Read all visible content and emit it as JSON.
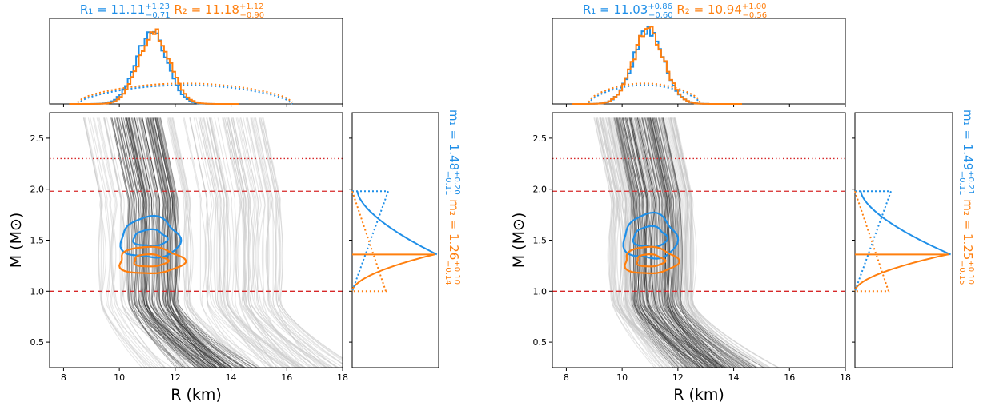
{
  "colors": {
    "r1": "#1f8fe8",
    "r2": "#ff7f0e",
    "constraint": "#d62728",
    "eos_dark": "#222222",
    "eos_light": "#c8c8c8"
  },
  "chart_data": [
    {
      "type": "line",
      "panel": "left",
      "xlabel": "R (km)",
      "ylabel": "M (M⊙)",
      "xlim": [
        7.5,
        18
      ],
      "ylim": [
        0.25,
        2.75
      ],
      "x_ticks": [
        8,
        10,
        12,
        14,
        16,
        18
      ],
      "y_ticks": [
        0.5,
        1.0,
        1.5,
        2.0,
        2.5
      ],
      "reference_lines": [
        {
          "y": 1.0,
          "style": "dashed",
          "color": "red"
        },
        {
          "y": 1.98,
          "style": "dashed",
          "color": "red"
        },
        {
          "y": 2.3,
          "style": "dotted",
          "color": "red"
        }
      ],
      "top_title": {
        "r1_label": "R₁ = 11.11",
        "r1_up": "+1.23",
        "r1_down": "−0.71",
        "r2_label": "R₂ = 11.18",
        "r2_up": "+1.12",
        "r2_down": "−0.90"
      },
      "side_title": {
        "m1_label": "m₁ = 1.48",
        "m1_up": "+0.20",
        "m1_down": "−0.11",
        "m2_label": "m₂ = 1.26",
        "m2_up": "+0.10",
        "m2_down": "−0.14"
      },
      "contours": [
        {
          "series": "m1/R1",
          "center": [
            11.1,
            1.52
          ],
          "rx": [
            1.05,
            0.6
          ],
          "ry": [
            0.2,
            0.08
          ]
        },
        {
          "series": "m2/R2",
          "center": [
            11.1,
            1.3
          ],
          "rx": [
            1.15,
            0.6
          ],
          "ry": [
            0.13,
            0.06
          ]
        }
      ],
      "R_posterior_peak": [
        11.1,
        11.2
      ],
      "mass_marginal_peak": 1.36
    },
    {
      "type": "line",
      "panel": "right",
      "xlabel": "R (km)",
      "ylabel": "M (M⊙)",
      "xlim": [
        7.5,
        18
      ],
      "ylim": [
        0.25,
        2.75
      ],
      "x_ticks": [
        8,
        10,
        12,
        14,
        16,
        18
      ],
      "y_ticks": [
        0.5,
        1.0,
        1.5,
        2.0,
        2.5
      ],
      "reference_lines": [
        {
          "y": 1.0,
          "style": "dashed",
          "color": "red"
        },
        {
          "y": 1.98,
          "style": "dashed",
          "color": "red"
        },
        {
          "y": 2.3,
          "style": "dotted",
          "color": "red"
        }
      ],
      "top_title": {
        "r1_label": "R₁ = 11.03",
        "r1_up": "+0.86",
        "r1_down": "−0.60",
        "r2_label": "R₂ = 10.94",
        "r2_up": "+1.00",
        "r2_down": "−0.56"
      },
      "side_title": {
        "m1_label": "m₁ = 1.49",
        "m1_up": "+0.21",
        "m1_down": "−0.11",
        "m2_label": "m₂ = 1.25",
        "m2_up": "+0.10",
        "m2_down": "−0.15"
      },
      "contours": [
        {
          "series": "m1/R1",
          "center": [
            11.0,
            1.53
          ],
          "rx": [
            0.95,
            0.6
          ],
          "ry": [
            0.22,
            0.1
          ]
        },
        {
          "series": "m2/R2",
          "center": [
            11.0,
            1.3
          ],
          "rx": [
            0.95,
            0.5
          ],
          "ry": [
            0.13,
            0.06
          ]
        }
      ],
      "R_posterior_peak": [
        10.9,
        10.9
      ],
      "mass_marginal_peak": 1.36
    }
  ]
}
